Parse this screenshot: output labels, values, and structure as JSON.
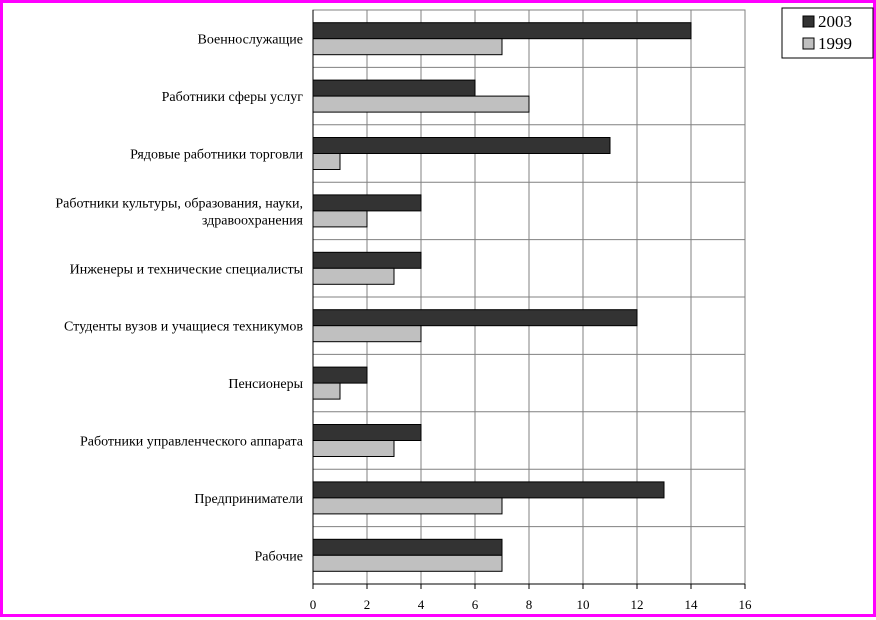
{
  "chart_data": {
    "type": "bar",
    "orientation": "horizontal",
    "title": "",
    "xlabel": "",
    "ylabel": "",
    "xlim": [
      0,
      16
    ],
    "xticks": [
      0,
      2,
      4,
      6,
      8,
      10,
      12,
      14,
      16
    ],
    "grid": "vertical",
    "legend_position": "top-right",
    "categories": [
      [
        "Военнослужащие"
      ],
      [
        "Работники сферы услуг"
      ],
      [
        "Рядовые работники торговли"
      ],
      [
        "Работники культуры, образования, науки,",
        "здравоохранения"
      ],
      [
        "Инженеры и технические специалисты"
      ],
      [
        "Студенты вузов и учащиеся техникумов"
      ],
      [
        "Пенсионеры"
      ],
      [
        "Работники управленческого аппарата"
      ],
      [
        "Предприниматели"
      ],
      [
        "Рабочие"
      ]
    ],
    "series": [
      {
        "name": "2003",
        "color": "#333333",
        "values": [
          14,
          6,
          11,
          4,
          4,
          12,
          2,
          4,
          13,
          7
        ]
      },
      {
        "name": "1999",
        "color": "#c0c0c0",
        "values": [
          7,
          8,
          1,
          2,
          3,
          4,
          1,
          3,
          7,
          7
        ]
      }
    ]
  }
}
